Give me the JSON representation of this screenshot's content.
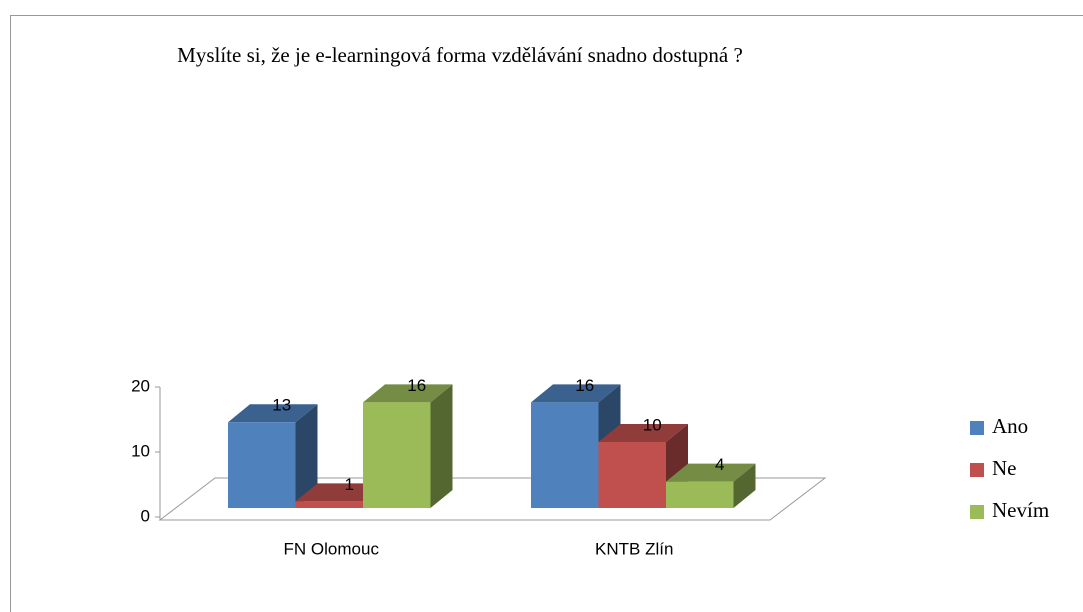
{
  "chart_data": {
    "type": "bar",
    "three_d": true,
    "title": "Myslíte si, že je e-learningová forma vzdělávání snadno dostupná ?",
    "categories": [
      "FN Olomouc",
      "KNTB Zlín"
    ],
    "series": [
      {
        "name": "Ano",
        "color": "#4f81bd",
        "values": [
          13,
          16
        ]
      },
      {
        "name": "Ne",
        "color": "#c0504d",
        "values": [
          1,
          10
        ]
      },
      {
        "name": "Nevím",
        "color": "#9bbb59",
        "values": [
          16,
          4
        ]
      }
    ],
    "ylim": [
      0,
      20
    ],
    "yticks": [
      0,
      10,
      20
    ],
    "legend": "right"
  }
}
